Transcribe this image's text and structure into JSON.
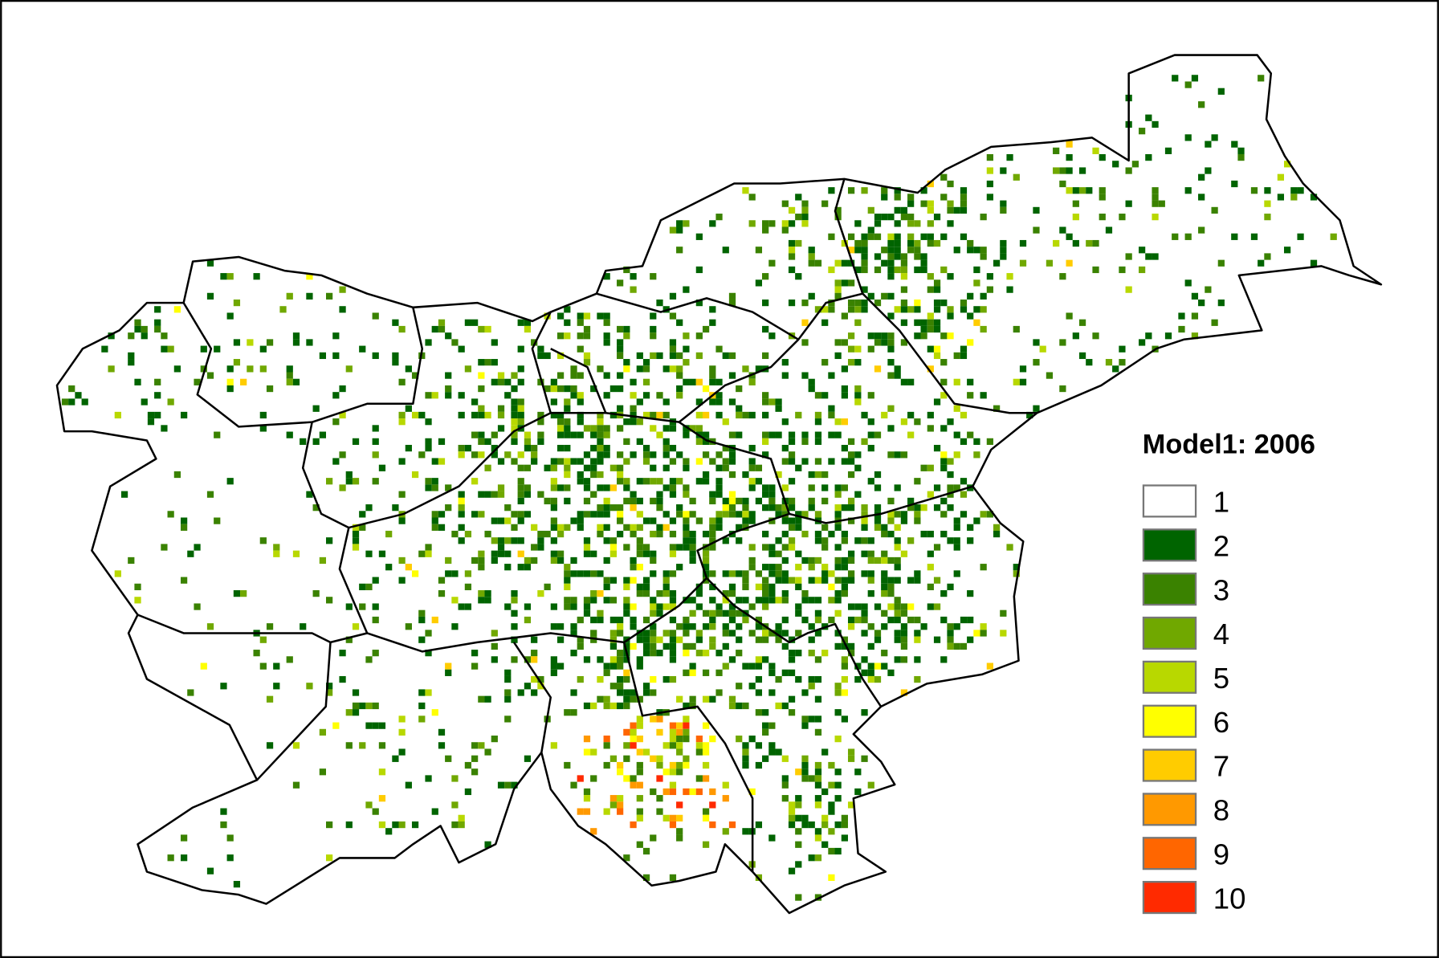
{
  "legend": {
    "title": "Model1: 2006",
    "items": [
      {
        "label": "1",
        "color": "#ffffff"
      },
      {
        "label": "2",
        "color": "#006400"
      },
      {
        "label": "3",
        "color": "#3a8200"
      },
      {
        "label": "4",
        "color": "#70a800"
      },
      {
        "label": "5",
        "color": "#b8d800"
      },
      {
        "label": "6",
        "color": "#ffff00"
      },
      {
        "label": "7",
        "color": "#ffcc00"
      },
      {
        "label": "8",
        "color": "#ff9900"
      },
      {
        "label": "9",
        "color": "#ff6600"
      },
      {
        "label": "10",
        "color": "#ff2a00"
      }
    ]
  }
}
